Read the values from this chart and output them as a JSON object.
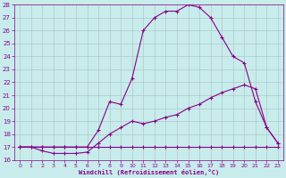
{
  "xlabel": "Windchill (Refroidissement éolien,°C)",
  "xlim": [
    -0.5,
    23.5
  ],
  "ylim": [
    16,
    28
  ],
  "yticks": [
    16,
    17,
    18,
    19,
    20,
    21,
    22,
    23,
    24,
    25,
    26,
    27,
    28
  ],
  "xticks": [
    0,
    1,
    2,
    3,
    4,
    5,
    6,
    7,
    8,
    9,
    10,
    11,
    12,
    13,
    14,
    15,
    16,
    17,
    18,
    19,
    20,
    21,
    22,
    23
  ],
  "background_color": "#c8ecec",
  "line_color": "#880088",
  "grid_color": "#b0c8c8",
  "curve1_x": [
    0,
    1,
    2,
    3,
    4,
    5,
    6,
    7,
    8,
    9,
    10,
    11,
    12,
    13,
    14,
    15,
    16,
    17,
    18,
    19,
    20,
    21,
    22,
    23
  ],
  "curve1_y": [
    17.0,
    17.0,
    17.0,
    17.0,
    17.0,
    17.0,
    17.0,
    17.0,
    17.0,
    17.0,
    17.0,
    17.0,
    17.0,
    17.0,
    17.0,
    17.0,
    17.0,
    17.0,
    17.0,
    17.0,
    17.0,
    17.0,
    17.0,
    17.0
  ],
  "curve2_x": [
    0,
    1,
    2,
    3,
    4,
    5,
    6,
    7,
    8,
    9,
    10,
    11,
    12,
    13,
    14,
    15,
    16,
    17,
    18,
    19,
    20,
    21,
    22,
    23
  ],
  "curve2_y": [
    17.0,
    17.0,
    16.7,
    16.5,
    16.5,
    16.5,
    16.6,
    17.3,
    18.0,
    18.5,
    19.0,
    18.8,
    19.0,
    19.3,
    19.5,
    20.0,
    20.3,
    20.8,
    21.2,
    21.5,
    21.8,
    21.5,
    18.5,
    17.3
  ],
  "curve3_x": [
    0,
    2,
    3,
    4,
    5,
    6,
    7,
    8,
    9,
    10,
    11,
    12,
    13,
    14,
    15,
    16,
    17,
    18,
    19,
    20,
    21,
    22,
    23
  ],
  "curve3_y": [
    17.0,
    17.0,
    17.0,
    17.0,
    17.0,
    17.0,
    18.3,
    20.5,
    20.3,
    22.3,
    26.0,
    27.0,
    27.5,
    27.5,
    28.0,
    27.8,
    27.0,
    25.5,
    24.0,
    23.5,
    20.5,
    18.5,
    17.3
  ]
}
